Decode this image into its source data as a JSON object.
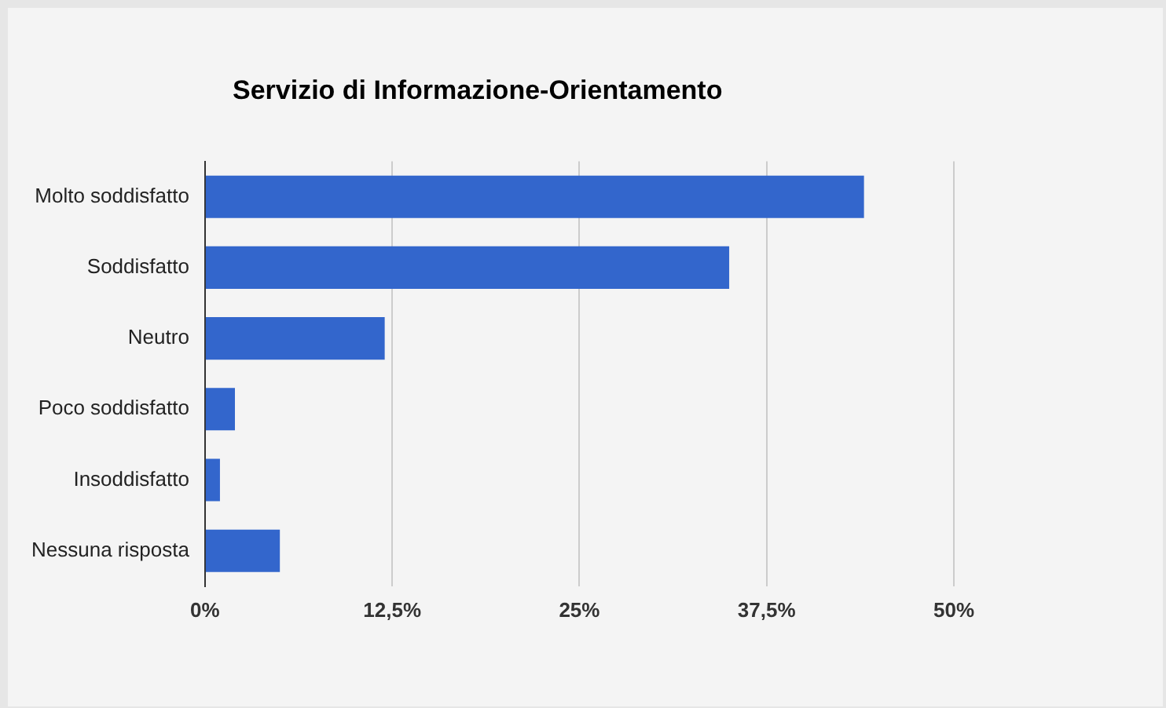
{
  "chart_data": {
    "type": "bar",
    "orientation": "horizontal",
    "title": "Servizio di Informazione-Orientamento",
    "categories": [
      "Molto soddisfatto",
      "Soddisfatto",
      "Neutro",
      "Poco soddisfatto",
      "Insoddisfatto",
      "Nessuna risposta"
    ],
    "values": [
      44,
      35,
      12,
      2,
      1,
      5
    ],
    "color": "#3366cc",
    "xlim": [
      0,
      50
    ],
    "xticks": [
      {
        "value": 0,
        "label": "0%"
      },
      {
        "value": 12.5,
        "label": "12,5%"
      },
      {
        "value": 25,
        "label": "25%"
      },
      {
        "value": 37.5,
        "label": "37,5%"
      },
      {
        "value": 50,
        "label": "50%"
      }
    ],
    "grid": "x",
    "legend": false
  }
}
